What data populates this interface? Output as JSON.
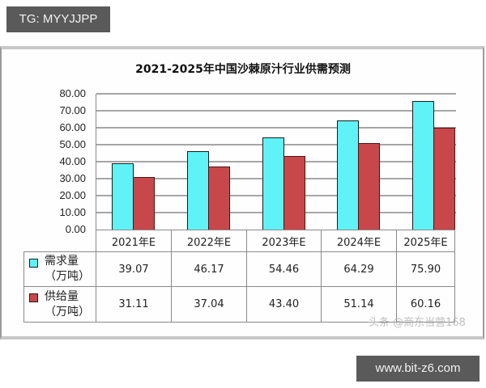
{
  "tags": {
    "top": "TG: MYYJJPP",
    "bottom": "www.bit-z6.com"
  },
  "watermark": "头条 @商东当营168",
  "colors": {
    "demand": "#5ff3f7",
    "supply": "#c8474a",
    "grid": "#a6a6a6",
    "tag_bg": "#5a5a5a"
  },
  "chart_data": {
    "type": "bar",
    "title": "2021-2025年中国沙棘原汁行业供需预测",
    "xlabel": "",
    "ylabel": "",
    "ylim": [
      0,
      80
    ],
    "yticks": [
      "80.00",
      "70.00",
      "60.00",
      "50.00",
      "40.00",
      "30.00",
      "20.00",
      "10.00",
      "0.00"
    ],
    "grid": true,
    "legend_position": "data-table-left",
    "categories": [
      "2021年E",
      "2022年E",
      "2023年E",
      "2024年E",
      "2025年E"
    ],
    "series": [
      {
        "name": "需求量（万吨）",
        "name_line1": "需求量",
        "name_line2": "（万吨）",
        "color": "#5ff3f7",
        "values": [
          39.07,
          46.17,
          54.46,
          64.29,
          75.9
        ],
        "labels": [
          "39.07",
          "46.17",
          "54.46",
          "64.29",
          "75.90"
        ]
      },
      {
        "name": "供给量（万吨）",
        "name_line1": "供给量",
        "name_line2": "（万吨）",
        "color": "#c8474a",
        "values": [
          31.11,
          37.04,
          43.4,
          51.14,
          60.16
        ],
        "labels": [
          "31.11",
          "37.04",
          "43.40",
          "51.14",
          "60.16"
        ]
      }
    ]
  }
}
